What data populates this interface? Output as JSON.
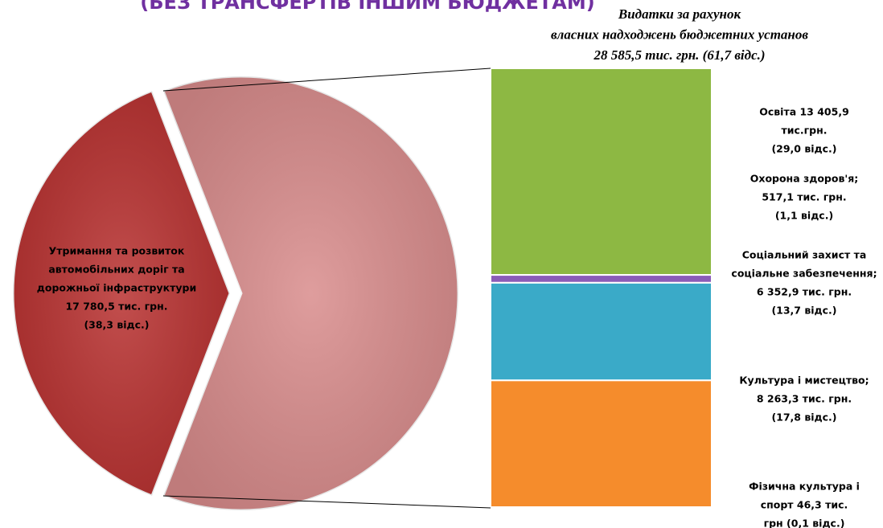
{
  "chart_data": {
    "type": "pie-of-bar",
    "title": "(БЕЗ ТРАНСФЕРТІВ ІНШИМ БЮДЖЕТАМ)",
    "pie": {
      "values": [
        38.3,
        61.7
      ],
      "colors": [
        "#b8302f",
        "#d98c8c"
      ],
      "labels": [
        [
          "Утримання та розвиток",
          "автомобільних доріг та",
          "дорожньої інфраструктури",
          "17 780,5 тис. грн.",
          "(38,3 відс.)"
        ],
        [
          "Видатки за рахунок",
          "власних надходжень бюджетних установ",
          "28 585,5 тис. грн. (61,7 відс.)"
        ]
      ]
    },
    "bar": {
      "values": [
        29.0,
        1.1,
        13.7,
        17.8,
        0.1
      ],
      "colors": [
        "#8db843",
        "#8a5cb8",
        "#3aaac8",
        "#f58c2c",
        "#c0504d"
      ],
      "labels": [
        [
          "Освіта 13 405,9",
          "тис.грн.",
          "(29,0 відс.)"
        ],
        [
          "Охорона здоров'я;",
          "517,1 тис. грн.",
          "(1,1 відс.)"
        ],
        [
          "Соціальний захист та",
          "соціальне забезпечення;",
          "6 352,9 тис. грн.",
          "(13,7 відс.)"
        ],
        [
          "Культура і мистецтво;",
          "8 263,3 тис. грн.",
          "(17,8 відс.)"
        ],
        [
          "Фізична культура і",
          "спорт 46,3 тис.",
          "грн (0,1 відс.)"
        ]
      ]
    }
  }
}
